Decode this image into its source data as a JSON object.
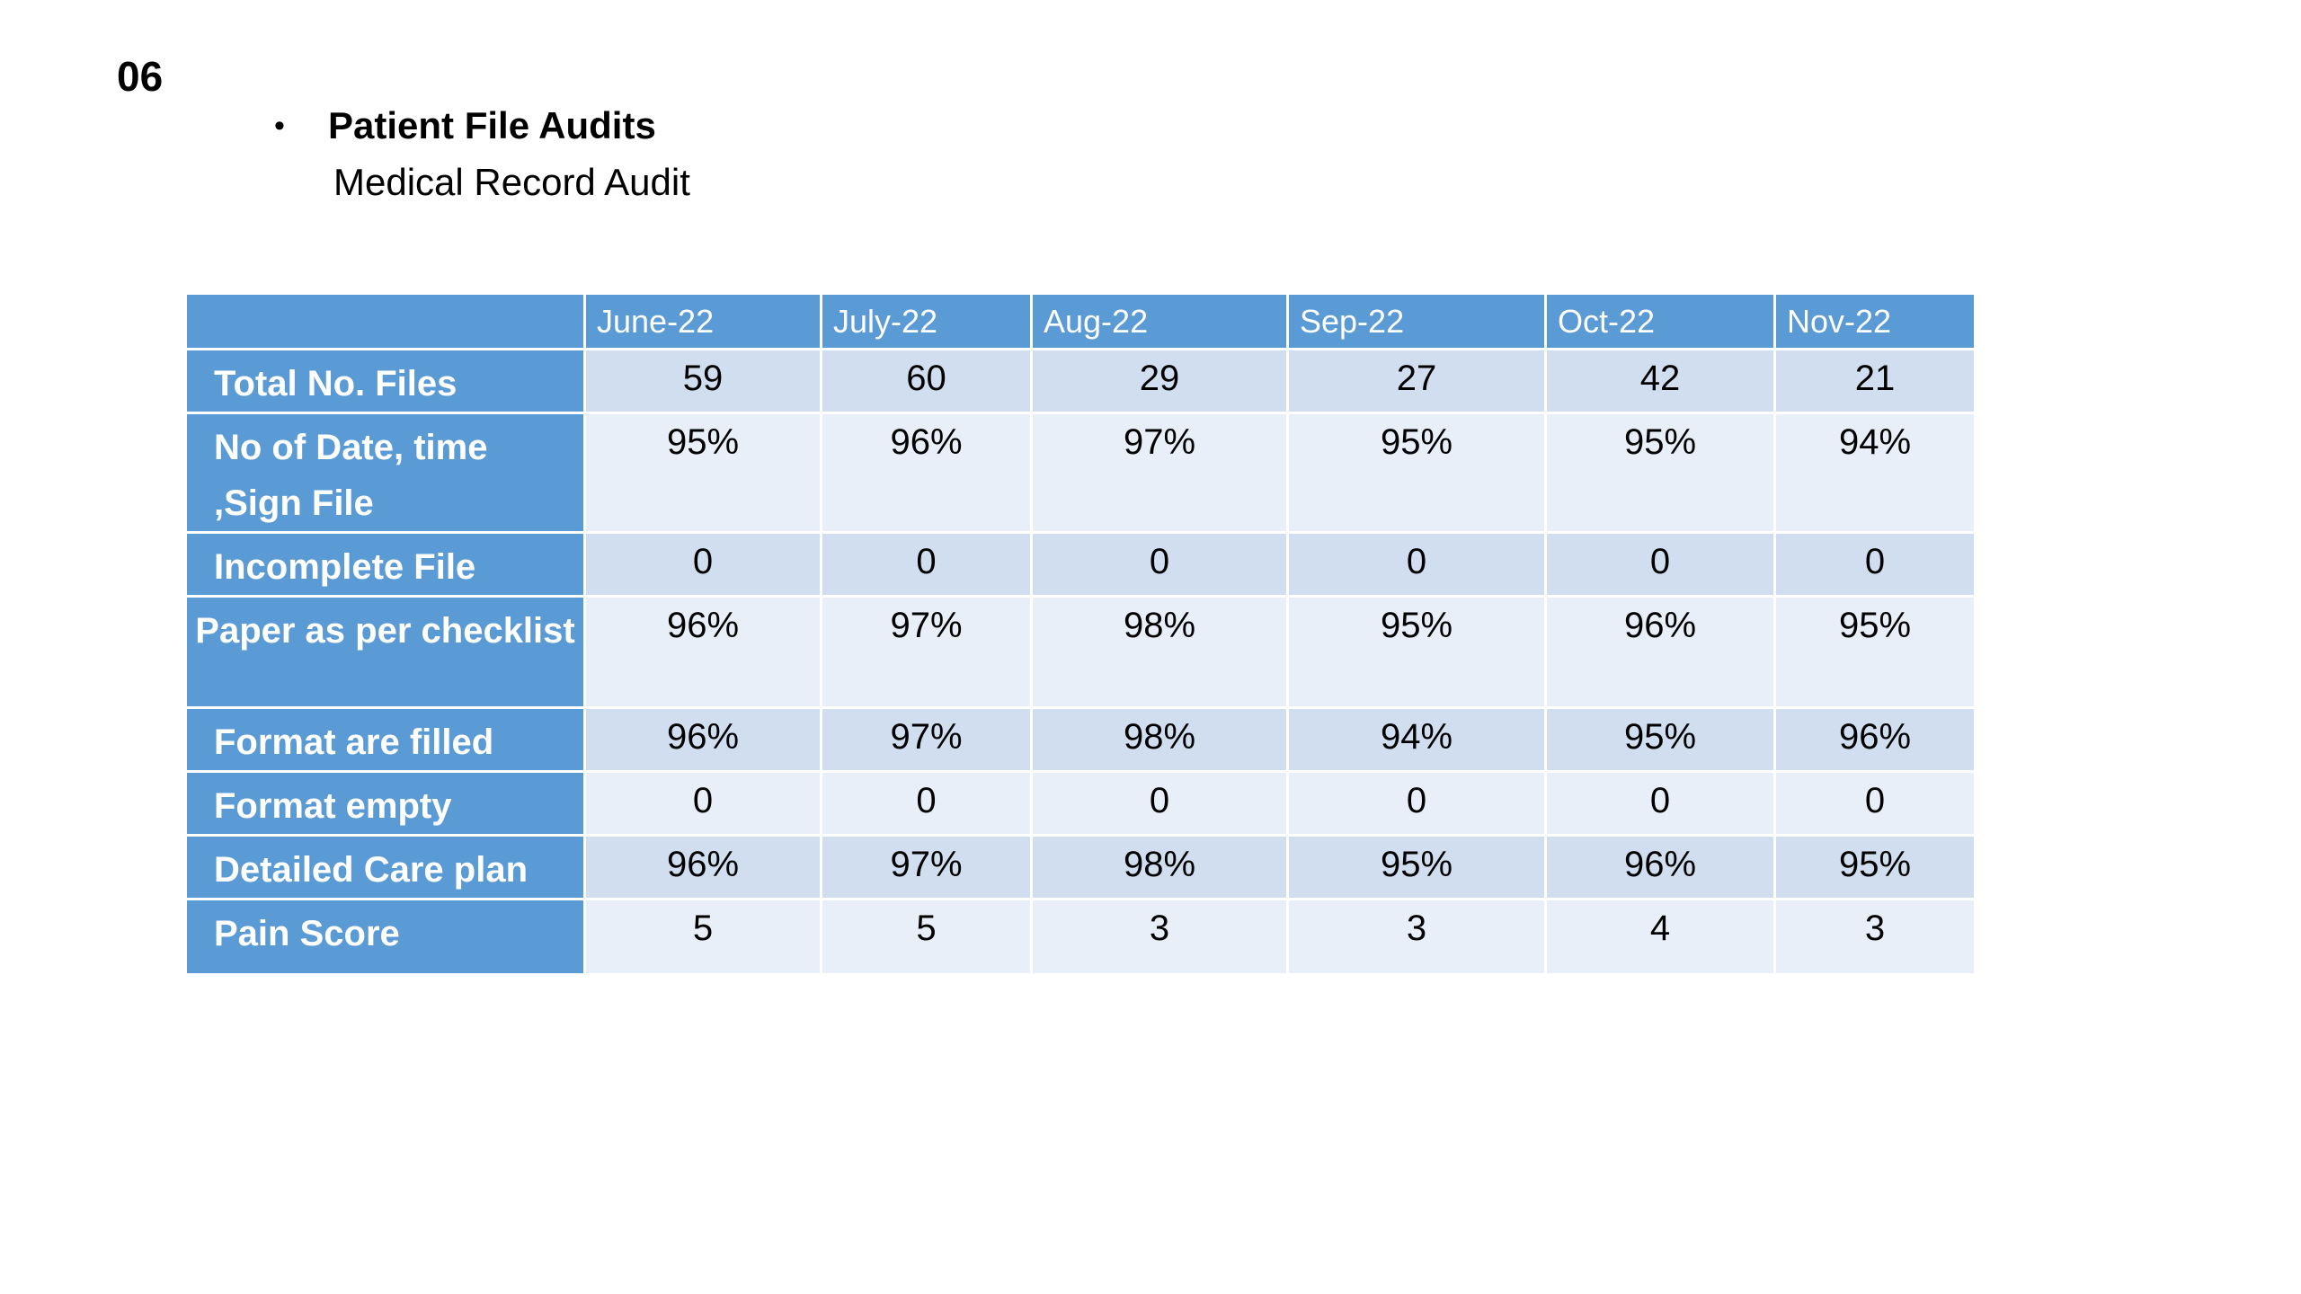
{
  "slide": {
    "number": "06",
    "heading": "Patient File Audits",
    "subheading": "Medical Record Audit"
  },
  "colors": {
    "header_blue": "#5b9bd5",
    "row_dark": "#d0def0",
    "row_light": "#e9eff8"
  },
  "table": {
    "corner": "",
    "columns": [
      "June-22",
      "July-22",
      "Aug-22",
      "Sep-22",
      "Oct-22",
      "Nov-22"
    ],
    "rows": [
      {
        "label": "Total No. Files",
        "values": [
          "59",
          "60",
          "29",
          "27",
          "42",
          "21"
        ]
      },
      {
        "label": "No of Date, time ,Sign File",
        "values": [
          "95%",
          "96%",
          "97%",
          "95%",
          "95%",
          "94%"
        ]
      },
      {
        "label": "Incomplete File",
        "values": [
          "0",
          "0",
          "0",
          "0",
          "0",
          "0"
        ]
      },
      {
        "label": "Paper as per checklist",
        "values": [
          "96%",
          "97%",
          "98%",
          "95%",
          "96%",
          "95%"
        ]
      },
      {
        "label": "Format are filled",
        "values": [
          "96%",
          "97%",
          "98%",
          "94%",
          "95%",
          "96%"
        ]
      },
      {
        "label": "Format empty",
        "values": [
          "0",
          "0",
          "0",
          "0",
          "0",
          "0"
        ]
      },
      {
        "label": "Detailed Care plan",
        "values": [
          "96%",
          "97%",
          "98%",
          "95%",
          "96%",
          "95%"
        ]
      },
      {
        "label": "Pain Score",
        "values": [
          "5",
          "5",
          "3",
          "3",
          "4",
          "3"
        ]
      }
    ]
  }
}
